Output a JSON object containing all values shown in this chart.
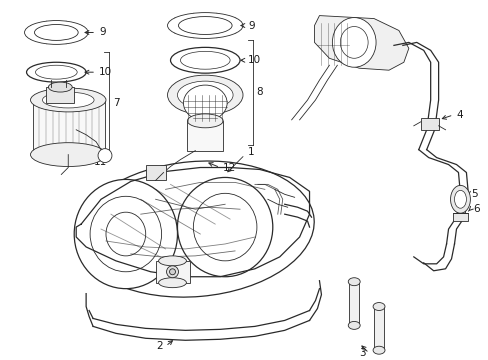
{
  "bg_color": "#ffffff",
  "line_color": "#2a2a2a",
  "text_color": "#1a1a1a",
  "fig_width": 4.89,
  "fig_height": 3.6,
  "dpi": 100,
  "lw_thin": 0.6,
  "lw_med": 0.9,
  "lw_thick": 1.2,
  "label_fs": 7.5
}
